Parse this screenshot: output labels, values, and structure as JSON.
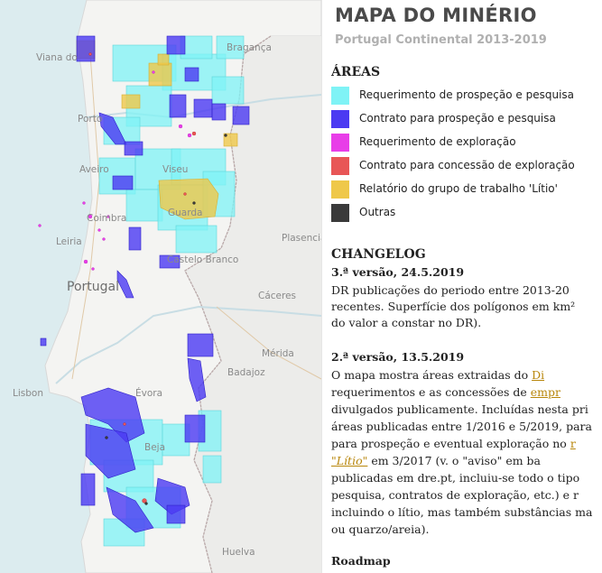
{
  "map": {
    "cities": [
      "Viana do",
      "Bragança",
      "Porto",
      "Aveiro",
      "Viseu",
      "Coimbra",
      "Guarda",
      "Castelo Branco",
      "Leiria",
      "Plasencia",
      "Cáceres",
      "Mérida",
      "Badajoz",
      "Évora",
      "Lisbon",
      "Beja",
      "Huelva"
    ],
    "country_label": "Portugal",
    "legend_colors": {
      "requerimento_prospecao": "#7ff3f6",
      "contrato_prospecao": "#4b3af2",
      "requerimento_exploracao": "#e83de8",
      "contrato_concessao": "#e85656",
      "relatorio_litio": "#efc84a",
      "outras": "#3a3a3a"
    }
  },
  "panel": {
    "title": "MAPA DO MINÉRIO",
    "subtitle": "Portugal Continental 2013-2019",
    "areas_heading": "ÁREAS",
    "legend": [
      {
        "label": "Requerimento de prospeção e pesquisa",
        "color": "#7ff3f6"
      },
      {
        "label": "Contrato para prospeção e pesquisa",
        "color": "#4b3af2"
      },
      {
        "label": "Requerimento de exploração",
        "color": "#e83de8"
      },
      {
        "label": "Contrato para concessão de exploração",
        "color": "#e85656"
      },
      {
        "label": "Relatório do grupo de trabalho 'Lítio'",
        "color": "#efc84a"
      },
      {
        "label": "Outras",
        "color": "#3a3a3a"
      }
    ],
    "changelog_heading": "CHANGELOG",
    "v3": {
      "heading": "3.ª versão, 24.5.2019",
      "line1": "DR publicações do periodo entre 2013-20",
      "line2": "recentes. Superfície dos polígonos em km²",
      "line3": "do valor a constar no DR)."
    },
    "v2": {
      "heading": "2.ª versão, 13.5.2019",
      "line1_a": "O mapa mostra áreas extraidas do ",
      "line1_link": "Di",
      "line2_a": "requerimentos e as concessões de ",
      "line2_link": "empr",
      "line3": "divulgados publicamente. Incluídas nesta pri",
      "line4": "áreas publicadas entre 1/2016 e 5/2019, para",
      "line5_a": "para prospeção e eventual exploração no ",
      "line5_link": "r",
      "line6_link": "\"Lítio\"",
      "line6_b": " em 3/2017 (v. o \"aviso\" em ba",
      "line7": "publicadas em dre.pt, incluiu-se todo o tipo",
      "line8": "pesquisa, contratos de exploração, etc.) e r",
      "line9": "incluindo o lítio, mas também substâncias ma",
      "line10": "ou quarzo/areia)."
    },
    "roadmap_heading": "Roadmap"
  }
}
